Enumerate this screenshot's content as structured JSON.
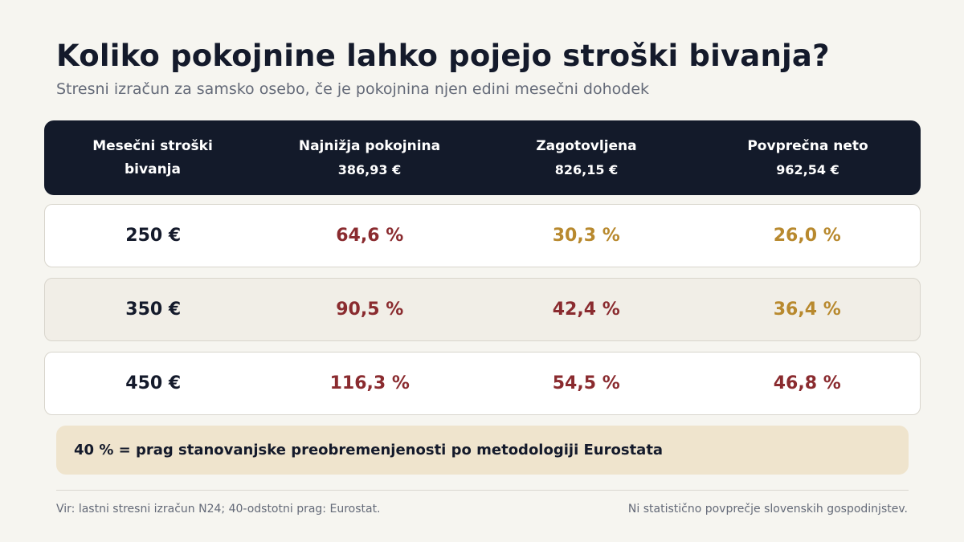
{
  "title": "Koliko pokojnine lahko pojejo stroški bivanja?",
  "subtitle": "Stresni izračun za samsko osebo, če je pokojnina njen edini mesečni dohodek",
  "colors": {
    "header_bg": "#131a2a",
    "high_share": "#8a2b2f",
    "below_threshold": "#b8892e",
    "note_bg": "#efe4cd"
  },
  "table": {
    "headers": [
      {
        "label": "Mesečni stroški bivanja",
        "amount": ""
      },
      {
        "label": "Najnižja pokojnina",
        "amount": "386,93 €"
      },
      {
        "label": "Zagotovljena",
        "amount": "826,15 €"
      },
      {
        "label": "Povprečna neto",
        "amount": "962,54 €"
      }
    ],
    "rows": [
      {
        "cost": "250 €",
        "values": [
          {
            "text": "64,6 %",
            "level": "high"
          },
          {
            "text": "30,3 %",
            "level": "low"
          },
          {
            "text": "26,0 %",
            "level": "low"
          }
        ]
      },
      {
        "cost": "350 €",
        "values": [
          {
            "text": "90,5 %",
            "level": "high"
          },
          {
            "text": "42,4 %",
            "level": "high"
          },
          {
            "text": "36,4 %",
            "level": "low"
          }
        ]
      },
      {
        "cost": "450 €",
        "values": [
          {
            "text": "116,3 %",
            "level": "high"
          },
          {
            "text": "54,5 %",
            "level": "high"
          },
          {
            "text": "46,8 %",
            "level": "high"
          }
        ]
      }
    ]
  },
  "note": "40 % = prag stanovanjske preobremenjenosti po metodologiji Eurostata",
  "footer": {
    "source": "Vir: lastni stresni izračun N24; 40-odstotni prag: Eurostat.",
    "disclaimer": "Ni statistično povprečje slovenskih gospodinjstev."
  }
}
